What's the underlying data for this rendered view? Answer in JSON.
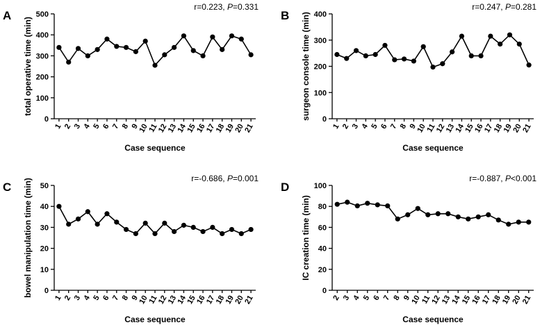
{
  "chart_data": [
    {
      "type": "line",
      "panel": "A",
      "ylabel": "total operative time (min)",
      "xlabel": "Case sequence",
      "annotation": [
        "r=0.223, ",
        "P",
        "=0.331"
      ],
      "color": "#000000",
      "categories": [
        "1",
        "2",
        "3",
        "4",
        "5",
        "6",
        "7",
        "8",
        "9",
        "10",
        "11",
        "12",
        "13",
        "14",
        "15",
        "16",
        "17",
        "18",
        "19",
        "20",
        "21"
      ],
      "values": [
        340,
        270,
        335,
        300,
        330,
        380,
        345,
        340,
        320,
        370,
        255,
        305,
        340,
        395,
        325,
        300,
        390,
        330,
        395,
        380,
        305
      ],
      "ylim": [
        0,
        500
      ],
      "yticks": [
        0,
        100,
        200,
        300,
        400,
        500
      ]
    },
    {
      "type": "line",
      "panel": "B",
      "ylabel": "surgeon console time (min)",
      "xlabel": "Case sequence",
      "annotation": [
        "r=0.247, ",
        "P",
        "=0.281"
      ],
      "color": "#000000",
      "categories": [
        "1",
        "2",
        "3",
        "4",
        "5",
        "6",
        "7",
        "8",
        "9",
        "10",
        "11",
        "12",
        "13",
        "14",
        "15",
        "16",
        "17",
        "18",
        "19",
        "20",
        "21"
      ],
      "values": [
        245,
        230,
        260,
        240,
        245,
        280,
        225,
        228,
        220,
        275,
        197,
        210,
        255,
        315,
        240,
        240,
        315,
        285,
        320,
        285,
        205
      ],
      "ylim": [
        0,
        400
      ],
      "yticks": [
        0,
        100,
        200,
        300,
        400
      ]
    },
    {
      "type": "line",
      "panel": "C",
      "ylabel": "bowel manipulation time (min)",
      "xlabel": "Case sequence",
      "annotation": [
        "r=-0.686, ",
        "P",
        "=0.001"
      ],
      "color": "#000000",
      "categories": [
        "1",
        "2",
        "3",
        "4",
        "5",
        "6",
        "7",
        "8",
        "9",
        "10",
        "11",
        "12",
        "13",
        "14",
        "15",
        "16",
        "17",
        "18",
        "19",
        "20",
        "21"
      ],
      "values": [
        40,
        31.5,
        34,
        37.5,
        31.5,
        36.5,
        32.5,
        29,
        27,
        32,
        27,
        32,
        28,
        31,
        30,
        28,
        30,
        27,
        29,
        27,
        29
      ],
      "ylim": [
        0,
        50
      ],
      "yticks": [
        0,
        10,
        20,
        30,
        40,
        50
      ]
    },
    {
      "type": "line",
      "panel": "D",
      "ylabel": "IC creation time (min)",
      "xlabel": "Case sequence",
      "annotation": [
        "r=-0.887, ",
        "P",
        "<0.001"
      ],
      "color": "#000000",
      "categories": [
        "2",
        "3",
        "4",
        "5",
        "6",
        "7",
        "8",
        "9",
        "10",
        "11",
        "12",
        "13",
        "14",
        "15",
        "16",
        "17",
        "18",
        "19",
        "20",
        "21"
      ],
      "values": [
        82,
        84,
        80.5,
        83,
        81.5,
        80.5,
        68,
        72,
        78,
        72,
        73,
        73,
        70,
        68,
        70,
        72,
        67,
        63,
        65,
        65
      ],
      "ylim": [
        0,
        100
      ],
      "yticks": [
        0,
        20,
        40,
        60,
        80,
        100
      ]
    }
  ]
}
